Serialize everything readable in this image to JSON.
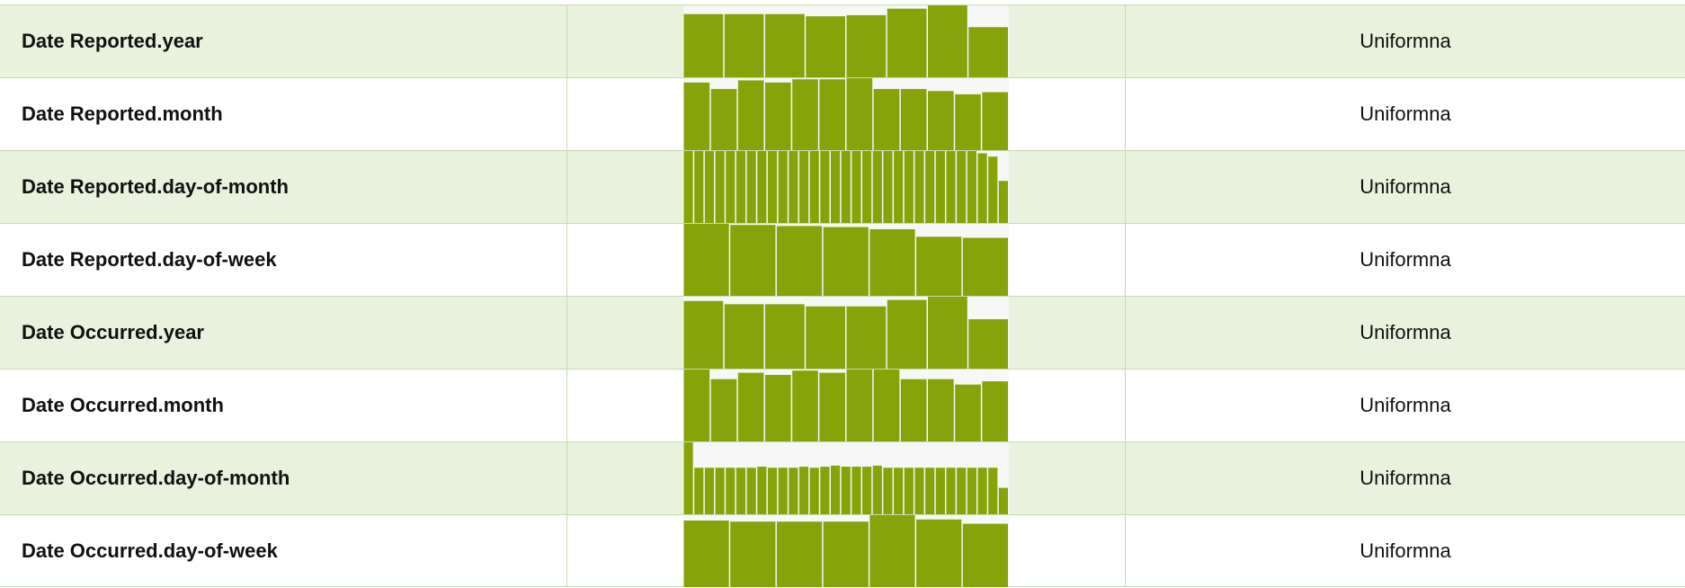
{
  "rows": [
    {
      "name": "Date Reported.year",
      "histogram": [
        58,
        58,
        58,
        56,
        57,
        63,
        66,
        46
      ],
      "distribution": "Uniformna"
    },
    {
      "name": "Date Reported.month",
      "histogram": [
        63,
        57,
        65,
        63,
        66,
        66,
        67,
        57,
        57,
        55,
        52,
        54
      ],
      "distribution": "Uniformna"
    },
    {
      "name": "Date Reported.day-of-month",
      "histogram": [
        65,
        65,
        65,
        65,
        65,
        65,
        65,
        65,
        65,
        65,
        65,
        65,
        65,
        65,
        65,
        65,
        65,
        65,
        65,
        65,
        65,
        65,
        65,
        65,
        65,
        65,
        65,
        65,
        63,
        60,
        38
      ],
      "distribution": "Uniformna"
    },
    {
      "name": "Date Reported.day-of-week",
      "histogram": [
        67,
        66,
        65,
        64,
        62,
        55,
        54
      ],
      "distribution": "Uniformna"
    },
    {
      "name": "Date Occurred.year",
      "histogram": [
        63,
        60,
        60,
        58,
        58,
        64,
        67,
        46
      ],
      "distribution": "Uniformna"
    },
    {
      "name": "Date Occurred.month",
      "histogram": [
        67,
        58,
        64,
        62,
        66,
        64,
        67,
        67,
        58,
        58,
        53,
        56
      ],
      "distribution": "Uniformna"
    },
    {
      "name": "Date Occurred.day-of-month",
      "histogram": [
        68,
        44,
        44,
        44,
        44,
        44,
        44,
        45,
        44,
        44,
        44,
        45,
        44,
        45,
        46,
        45,
        45,
        45,
        46,
        44,
        44,
        44,
        44,
        44,
        44,
        44,
        44,
        44,
        44,
        44,
        25
      ],
      "distribution": "Uniformna"
    },
    {
      "name": "Date Occurred.day-of-week",
      "histogram": [
        62,
        61,
        61,
        61,
        67,
        63,
        59
      ],
      "distribution": "Uniformna"
    }
  ]
}
